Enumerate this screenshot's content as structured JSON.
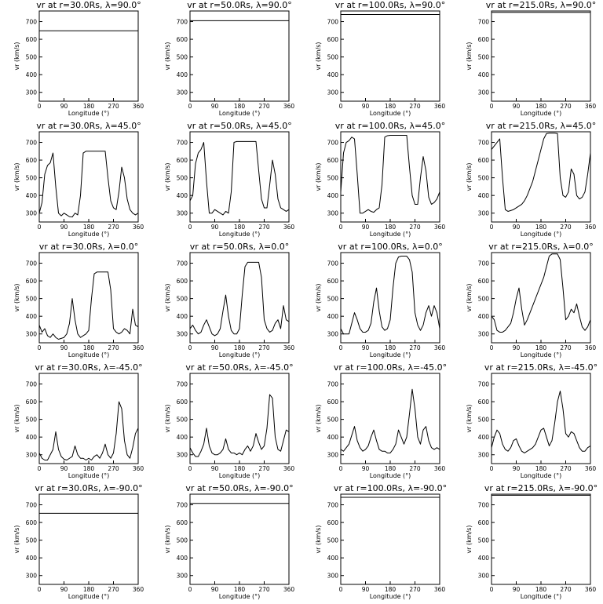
{
  "chart_data": {
    "type": "line",
    "layout": {
      "rows": 5,
      "cols": 4
    },
    "xlabel": "Longitude (°)",
    "ylabel": "vr (km/s)",
    "xlim": [
      0,
      360
    ],
    "ylim": [
      250,
      760
    ],
    "xticks": [
      0,
      90,
      180,
      270,
      360
    ],
    "yticks": [
      300,
      400,
      500,
      600,
      700
    ],
    "panels": [
      {
        "title": "vr at r=30.0Rs, λ=90.0°",
        "x": [
          0,
          360
        ],
        "y": [
          648,
          648
        ]
      },
      {
        "title": "vr at r=50.0Rs, λ=90.0°",
        "x": [
          0,
          360
        ],
        "y": [
          705,
          705
        ]
      },
      {
        "title": "vr at r=100.0Rs, λ=90.0°",
        "x": [
          0,
          360
        ],
        "y": [
          740,
          740
        ]
      },
      {
        "title": "vr at r=215.0Rs, λ=90.0°",
        "x": [
          0,
          360
        ],
        "y": [
          752,
          752
        ]
      },
      {
        "title": "vr at r=30.0Rs, λ=45.0°",
        "x": [
          0,
          10,
          20,
          30,
          40,
          50,
          60,
          70,
          80,
          90,
          100,
          110,
          120,
          130,
          140,
          150,
          160,
          170,
          180,
          190,
          200,
          210,
          220,
          230,
          240,
          250,
          260,
          270,
          280,
          290,
          300,
          310,
          320,
          330,
          340,
          350,
          360
        ],
        "y": [
          300,
          360,
          520,
          570,
          585,
          640,
          450,
          300,
          285,
          300,
          290,
          280,
          278,
          300,
          290,
          400,
          640,
          650,
          650,
          650,
          650,
          650,
          650,
          650,
          650,
          500,
          370,
          330,
          320,
          420,
          560,
          500,
          380,
          320,
          300,
          290,
          300
        ]
      },
      {
        "title": "vr at r=50.0Rs, λ=45.0°",
        "x": [
          0,
          10,
          20,
          30,
          40,
          50,
          60,
          70,
          80,
          90,
          100,
          110,
          120,
          130,
          140,
          150,
          160,
          170,
          180,
          190,
          200,
          210,
          220,
          230,
          240,
          250,
          260,
          270,
          280,
          290,
          300,
          310,
          320,
          330,
          340,
          350,
          360
        ],
        "y": [
          370,
          400,
          580,
          640,
          660,
          700,
          480,
          300,
          300,
          320,
          310,
          300,
          290,
          310,
          300,
          420,
          700,
          705,
          705,
          705,
          705,
          705,
          705,
          705,
          705,
          540,
          380,
          330,
          330,
          460,
          600,
          520,
          380,
          330,
          320,
          310,
          320
        ]
      },
      {
        "title": "vr at r=100.0Rs, λ=45.0°",
        "x": [
          0,
          10,
          20,
          30,
          40,
          50,
          60,
          70,
          80,
          90,
          100,
          110,
          120,
          130,
          140,
          150,
          160,
          170,
          180,
          190,
          200,
          210,
          220,
          230,
          240,
          250,
          260,
          270,
          280,
          290,
          300,
          310,
          320,
          330,
          340,
          350,
          360
        ],
        "y": [
          420,
          640,
          700,
          710,
          730,
          720,
          520,
          300,
          300,
          310,
          320,
          310,
          305,
          320,
          330,
          460,
          730,
          738,
          740,
          740,
          740,
          740,
          740,
          740,
          740,
          560,
          400,
          350,
          350,
          500,
          620,
          540,
          390,
          350,
          360,
          380,
          420
        ]
      },
      {
        "title": "vr at r=215.0Rs, λ=45.0°",
        "x": [
          0,
          10,
          20,
          30,
          40,
          50,
          60,
          70,
          80,
          90,
          100,
          110,
          120,
          130,
          140,
          150,
          160,
          170,
          180,
          190,
          200,
          210,
          220,
          230,
          240,
          250,
          260,
          270,
          280,
          290,
          300,
          310,
          320,
          330,
          340,
          350,
          360
        ],
        "y": [
          660,
          680,
          700,
          720,
          500,
          320,
          310,
          315,
          320,
          330,
          340,
          350,
          370,
          400,
          440,
          480,
          540,
          600,
          660,
          720,
          750,
          752,
          752,
          752,
          750,
          500,
          400,
          390,
          420,
          550,
          520,
          400,
          380,
          390,
          420,
          520,
          640
        ]
      },
      {
        "title": "vr at r=30.0Rs, λ=0.0°",
        "x": [
          0,
          10,
          20,
          30,
          40,
          50,
          60,
          70,
          80,
          90,
          100,
          110,
          120,
          130,
          140,
          150,
          160,
          170,
          180,
          190,
          200,
          210,
          220,
          230,
          240,
          250,
          260,
          270,
          280,
          290,
          300,
          310,
          320,
          330,
          340,
          350,
          360
        ],
        "y": [
          350,
          310,
          330,
          290,
          280,
          300,
          280,
          270,
          275,
          280,
          300,
          360,
          500,
          380,
          300,
          280,
          290,
          300,
          320,
          500,
          640,
          650,
          650,
          650,
          650,
          650,
          550,
          330,
          310,
          300,
          310,
          330,
          320,
          300,
          440,
          350,
          340
        ]
      },
      {
        "title": "vr at r=50.0Rs, λ=0.0°",
        "x": [
          0,
          10,
          20,
          30,
          40,
          50,
          60,
          70,
          80,
          90,
          100,
          110,
          120,
          130,
          140,
          150,
          160,
          170,
          180,
          190,
          200,
          210,
          220,
          230,
          240,
          250,
          260,
          270,
          280,
          290,
          300,
          310,
          320,
          330,
          340,
          350,
          360
        ],
        "y": [
          330,
          350,
          320,
          300,
          310,
          350,
          380,
          340,
          300,
          290,
          300,
          330,
          430,
          520,
          400,
          320,
          300,
          300,
          330,
          520,
          680,
          705,
          705,
          705,
          705,
          705,
          620,
          380,
          330,
          310,
          320,
          360,
          380,
          330,
          460,
          380,
          370
        ]
      },
      {
        "title": "vr at r=100.0Rs, λ=0.0°",
        "x": [
          0,
          10,
          20,
          30,
          40,
          50,
          60,
          70,
          80,
          90,
          100,
          110,
          120,
          130,
          140,
          150,
          160,
          170,
          180,
          190,
          200,
          210,
          220,
          230,
          240,
          250,
          260,
          270,
          280,
          290,
          300,
          310,
          320,
          330,
          340,
          350,
          360
        ],
        "y": [
          330,
          300,
          300,
          300,
          360,
          420,
          380,
          330,
          310,
          310,
          320,
          360,
          480,
          560,
          430,
          340,
          320,
          330,
          380,
          560,
          700,
          735,
          740,
          740,
          740,
          720,
          650,
          420,
          350,
          320,
          350,
          420,
          460,
          400,
          460,
          420,
          330
        ]
      },
      {
        "title": "vr at r=215.0Rs, λ=0.0°",
        "x": [
          0,
          10,
          20,
          30,
          40,
          50,
          60,
          70,
          80,
          90,
          100,
          110,
          120,
          130,
          140,
          150,
          160,
          170,
          180,
          190,
          200,
          210,
          220,
          230,
          240,
          250,
          260,
          270,
          280,
          290,
          300,
          310,
          320,
          330,
          340,
          350,
          360
        ],
        "y": [
          400,
          380,
          320,
          310,
          310,
          320,
          340,
          360,
          420,
          500,
          560,
          440,
          350,
          380,
          420,
          460,
          500,
          540,
          580,
          620,
          680,
          740,
          752,
          752,
          752,
          720,
          560,
          380,
          400,
          440,
          420,
          470,
          400,
          340,
          320,
          340,
          380
        ]
      },
      {
        "title": "vr at r=30.0Rs, λ=-45.0°",
        "x": [
          0,
          10,
          20,
          30,
          40,
          50,
          60,
          70,
          80,
          90,
          100,
          110,
          120,
          130,
          140,
          150,
          160,
          170,
          180,
          190,
          200,
          210,
          220,
          230,
          240,
          250,
          260,
          270,
          280,
          290,
          300,
          310,
          320,
          330,
          340,
          350,
          360
        ],
        "y": [
          310,
          280,
          270,
          270,
          300,
          330,
          430,
          330,
          290,
          275,
          270,
          280,
          290,
          350,
          300,
          280,
          280,
          270,
          280,
          270,
          290,
          300,
          280,
          310,
          360,
          300,
          280,
          310,
          420,
          600,
          560,
          380,
          300,
          280,
          340,
          420,
          450
        ]
      },
      {
        "title": "vr at r=50.0Rs, λ=-45.0°",
        "x": [
          0,
          10,
          20,
          30,
          40,
          50,
          60,
          70,
          80,
          90,
          100,
          110,
          120,
          130,
          140,
          150,
          160,
          170,
          180,
          190,
          200,
          210,
          220,
          230,
          240,
          250,
          260,
          270,
          280,
          290,
          300,
          310,
          320,
          330,
          340,
          350,
          360
        ],
        "y": [
          340,
          310,
          290,
          290,
          320,
          360,
          450,
          350,
          310,
          300,
          300,
          310,
          330,
          390,
          330,
          310,
          310,
          300,
          310,
          300,
          330,
          350,
          320,
          350,
          420,
          370,
          330,
          350,
          450,
          640,
          620,
          400,
          330,
          320,
          380,
          440,
          430
        ]
      },
      {
        "title": "vr at r=100.0Rs, λ=-45.0°",
        "x": [
          0,
          10,
          20,
          30,
          40,
          50,
          60,
          70,
          80,
          90,
          100,
          110,
          120,
          130,
          140,
          150,
          160,
          170,
          180,
          190,
          200,
          210,
          220,
          230,
          240,
          250,
          260,
          270,
          280,
          290,
          300,
          310,
          320,
          330,
          340,
          350,
          360
        ],
        "y": [
          330,
          320,
          340,
          360,
          410,
          460,
          380,
          340,
          320,
          330,
          350,
          400,
          440,
          380,
          330,
          320,
          320,
          310,
          310,
          330,
          360,
          440,
          400,
          360,
          400,
          530,
          670,
          560,
          400,
          360,
          440,
          460,
          380,
          340,
          330,
          340,
          330
        ]
      },
      {
        "title": "vr at r=215.0Rs, λ=-45.0°",
        "x": [
          0,
          10,
          20,
          30,
          40,
          50,
          60,
          70,
          80,
          90,
          100,
          110,
          120,
          130,
          140,
          150,
          160,
          170,
          180,
          190,
          200,
          210,
          220,
          230,
          240,
          250,
          260,
          270,
          280,
          290,
          300,
          310,
          320,
          330,
          340,
          350,
          360
        ],
        "y": [
          340,
          400,
          440,
          420,
          360,
          330,
          320,
          340,
          380,
          390,
          350,
          320,
          310,
          320,
          330,
          340,
          360,
          400,
          440,
          450,
          400,
          350,
          380,
          480,
          600,
          660,
          560,
          420,
          400,
          430,
          420,
          380,
          340,
          320,
          320,
          340,
          350
        ]
      },
      {
        "title": "vr at r=30.0Rs, λ=-90.0°",
        "x": [
          0,
          360
        ],
        "y": [
          652,
          652
        ]
      },
      {
        "title": "vr at r=50.0Rs, λ=-90.0°",
        "x": [
          0,
          360
        ],
        "y": [
          708,
          708
        ]
      },
      {
        "title": "vr at r=100.0Rs, λ=-90.0°",
        "x": [
          0,
          360
        ],
        "y": [
          742,
          742
        ]
      },
      {
        "title": "vr at r=215.0Rs, λ=-90.0°",
        "x": [
          0,
          360
        ],
        "y": [
          754,
          754
        ]
      }
    ]
  }
}
